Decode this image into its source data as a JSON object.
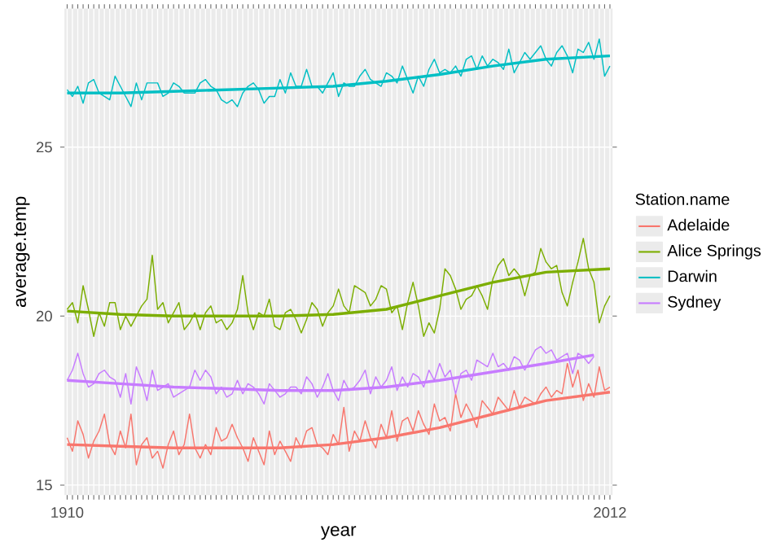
{
  "chart_data": {
    "type": "line",
    "xlabel": "year",
    "ylabel": "average.temp",
    "legend_title": "Station.name",
    "legend": "right",
    "grid": true,
    "x": [
      1910,
      1911,
      1912,
      1913,
      1914,
      1915,
      1916,
      1917,
      1918,
      1919,
      1920,
      1921,
      1922,
      1923,
      1924,
      1925,
      1926,
      1927,
      1928,
      1929,
      1930,
      1931,
      1932,
      1933,
      1934,
      1935,
      1936,
      1937,
      1938,
      1939,
      1940,
      1941,
      1942,
      1943,
      1944,
      1945,
      1946,
      1947,
      1948,
      1949,
      1950,
      1951,
      1952,
      1953,
      1954,
      1955,
      1956,
      1957,
      1958,
      1959,
      1960,
      1961,
      1962,
      1963,
      1964,
      1965,
      1966,
      1967,
      1968,
      1969,
      1970,
      1971,
      1972,
      1973,
      1974,
      1975,
      1976,
      1977,
      1978,
      1979,
      1980,
      1981,
      1982,
      1983,
      1984,
      1985,
      1986,
      1987,
      1988,
      1989,
      1990,
      1991,
      1992,
      1993,
      1994,
      1995,
      1996,
      1997,
      1998,
      1999,
      2000,
      2001,
      2002,
      2003,
      2004,
      2005,
      2006,
      2007,
      2008,
      2009,
      2010,
      2011,
      2012
    ],
    "xlim": [
      1909.5,
      2012.5
    ],
    "xticks": [
      1910,
      {
        "value": 1911,
        "label": null
      },
      {
        "value": 1912,
        "label": null
      },
      {
        "value": 1913,
        "label": null
      },
      {
        "value": 1914,
        "label": null
      },
      {
        "value": 1915,
        "label": null
      },
      {
        "value": 1916,
        "label": null
      },
      {
        "value": 1917,
        "label": null
      },
      {
        "value": 1918,
        "label": null
      },
      {
        "value": 1919,
        "label": null
      },
      {
        "value": 1920,
        "label": null
      },
      {
        "value": 1921,
        "label": null
      },
      {
        "value": 1922,
        "label": null
      },
      {
        "value": 1923,
        "label": null
      },
      {
        "value": 1924,
        "label": null
      },
      {
        "value": 1925,
        "label": null
      },
      {
        "value": 1926,
        "label": null
      },
      {
        "value": 1927,
        "label": null
      },
      {
        "value": 1928,
        "label": null
      },
      {
        "value": 1929,
        "label": null
      },
      {
        "value": 1930,
        "label": null
      },
      {
        "value": 1931,
        "label": null
      },
      {
        "value": 1932,
        "label": null
      },
      {
        "value": 1933,
        "label": null
      },
      {
        "value": 1934,
        "label": null
      },
      {
        "value": 1935,
        "label": null
      },
      {
        "value": 1936,
        "label": null
      },
      {
        "value": 1937,
        "label": null
      },
      {
        "value": 1938,
        "label": null
      },
      {
        "value": 1939,
        "label": null
      },
      {
        "value": 1940,
        "label": null
      },
      {
        "value": 1941,
        "label": null
      },
      {
        "value": 1942,
        "label": null
      },
      {
        "value": 1943,
        "label": null
      },
      {
        "value": 1944,
        "label": null
      },
      {
        "value": 1945,
        "label": null
      },
      {
        "value": 1946,
        "label": null
      },
      {
        "value": 1947,
        "label": null
      },
      {
        "value": 1948,
        "label": null
      },
      {
        "value": 1949,
        "label": null
      },
      {
        "value": 1950,
        "label": null
      },
      {
        "value": 1951,
        "label": null
      },
      {
        "value": 1952,
        "label": null
      },
      {
        "value": 1953,
        "label": null
      },
      {
        "value": 1954,
        "label": null
      },
      {
        "value": 1955,
        "label": null
      },
      {
        "value": 1956,
        "label": null
      },
      {
        "value": 1957,
        "label": null
      },
      {
        "value": 1958,
        "label": null
      },
      {
        "value": 1959,
        "label": null
      },
      {
        "value": 1960,
        "label": null
      },
      {
        "value": 1961,
        "label": null
      },
      {
        "value": 1962,
        "label": null
      },
      {
        "value": 1963,
        "label": null
      },
      {
        "value": 1964,
        "label": null
      },
      {
        "value": 1965,
        "label": null
      },
      {
        "value": 1966,
        "label": null
      },
      {
        "value": 1967,
        "label": null
      },
      {
        "value": 1968,
        "label": null
      },
      {
        "value": 1969,
        "label": null
      },
      {
        "value": 1970,
        "label": null
      },
      {
        "value": 1971,
        "label": null
      },
      {
        "value": 1972,
        "label": null
      },
      {
        "value": 1973,
        "label": null
      },
      {
        "value": 1974,
        "label": null
      },
      {
        "value": 1975,
        "label": null
      },
      {
        "value": 1976,
        "label": null
      },
      {
        "value": 1977,
        "label": null
      },
      {
        "value": 1978,
        "label": null
      },
      {
        "value": 1979,
        "label": null
      },
      {
        "value": 1980,
        "label": null
      },
      {
        "value": 1981,
        "label": null
      },
      {
        "value": 1982,
        "label": null
      },
      {
        "value": 1983,
        "label": null
      },
      {
        "value": 1984,
        "label": null
      },
      {
        "value": 1985,
        "label": null
      },
      {
        "value": 1986,
        "label": null
      },
      {
        "value": 1987,
        "label": null
      },
      {
        "value": 1988,
        "label": null
      },
      {
        "value": 1989,
        "label": null
      },
      {
        "value": 1990,
        "label": null
      },
      {
        "value": 1991,
        "label": null
      },
      {
        "value": 1992,
        "label": null
      },
      {
        "value": 1993,
        "label": null
      },
      {
        "value": 1994,
        "label": null
      },
      {
        "value": 1995,
        "label": null
      },
      {
        "value": 1996,
        "label": null
      },
      {
        "value": 1997,
        "label": null
      },
      {
        "value": 1998,
        "label": null
      },
      {
        "value": 1999,
        "label": null
      },
      {
        "value": 2000,
        "label": null
      },
      {
        "value": 2001,
        "label": null
      },
      {
        "value": 2002,
        "label": null
      },
      {
        "value": 2003,
        "label": null
      },
      {
        "value": 2004,
        "label": null
      },
      {
        "value": 2005,
        "label": null
      },
      {
        "value": 2006,
        "label": null
      },
      {
        "value": 2007,
        "label": null
      },
      {
        "value": 2008,
        "label": null
      },
      {
        "value": 2009,
        "label": null
      },
      {
        "value": 2010,
        "label": null
      },
      {
        "value": 2011,
        "label": null
      },
      2012
    ],
    "ylim": [
      14.7,
      29.1
    ],
    "yticks": [
      15,
      20,
      25
    ],
    "series": [
      {
        "name": "Adelaide",
        "color": "#f8766d",
        "values": [
          16.4,
          16.0,
          16.9,
          16.5,
          15.8,
          16.3,
          16.6,
          17.1,
          16.2,
          15.9,
          16.6,
          16.1,
          17.1,
          15.6,
          16.2,
          16.4,
          15.8,
          16.0,
          15.5,
          16.2,
          16.6,
          15.9,
          16.2,
          17.1,
          16.1,
          15.8,
          16.2,
          15.9,
          16.7,
          16.3,
          16.4,
          16.8,
          16.4,
          16.1,
          15.7,
          16.4,
          16.0,
          15.6,
          16.6,
          15.9,
          16.3,
          16.0,
          15.7,
          16.4,
          16.1,
          16.6,
          16.7,
          16.2,
          16.1,
          15.9,
          16.5,
          16.2,
          17.3,
          16.0,
          16.6,
          16.3,
          16.9,
          16.4,
          16.1,
          16.8,
          16.4,
          17.2,
          16.3,
          16.9,
          17.0,
          16.6,
          17.2,
          16.8,
          16.5,
          17.4,
          16.9,
          17.0,
          16.6,
          17.7,
          17.0,
          17.4,
          17.1,
          16.7,
          17.5,
          17.3,
          17.1,
          17.6,
          17.4,
          17.2,
          17.8,
          17.3,
          17.6,
          17.5,
          17.4,
          17.7,
          17.9,
          17.6,
          17.8,
          17.7,
          18.6,
          17.9,
          18.4,
          17.5,
          18.0,
          17.6,
          18.5,
          17.8,
          17.9
        ]
      },
      {
        "name": "Alice Springs",
        "color": "#7cae00",
        "values": [
          20.2,
          20.4,
          19.8,
          20.9,
          20.2,
          19.4,
          20.1,
          19.7,
          20.4,
          20.4,
          19.6,
          20.0,
          19.7,
          20.0,
          20.3,
          20.5,
          21.8,
          20.2,
          20.4,
          19.8,
          20.1,
          20.4,
          19.6,
          19.8,
          20.1,
          19.6,
          20.1,
          20.3,
          19.8,
          19.9,
          19.6,
          19.8,
          20.2,
          21.2,
          20.1,
          19.6,
          20.1,
          20.0,
          20.5,
          19.7,
          19.6,
          20.1,
          20.2,
          19.9,
          19.5,
          19.9,
          20.4,
          20.2,
          19.7,
          20.1,
          20.3,
          20.8,
          20.3,
          20.1,
          20.9,
          20.8,
          20.7,
          20.3,
          20.5,
          20.9,
          20.8,
          20.1,
          20.3,
          19.6,
          20.4,
          21.0,
          20.3,
          19.4,
          19.8,
          19.5,
          20.2,
          21.4,
          21.2,
          20.8,
          20.2,
          20.5,
          20.6,
          20.9,
          20.6,
          20.2,
          21.1,
          21.5,
          21.7,
          21.2,
          21.4,
          21.2,
          20.6,
          21.2,
          21.3,
          22.0,
          21.6,
          21.4,
          21.5,
          20.7,
          20.3,
          21.0,
          21.6,
          22.3,
          21.4,
          21.0,
          19.8,
          20.3,
          20.6
        ]
      },
      {
        "name": "Darwin",
        "color": "#00bfc4",
        "values": [
          26.7,
          26.5,
          26.8,
          26.3,
          26.9,
          27.0,
          26.6,
          26.5,
          26.4,
          27.1,
          26.8,
          26.5,
          26.2,
          26.9,
          26.4,
          26.9,
          26.9,
          26.9,
          26.5,
          26.6,
          26.9,
          26.8,
          26.6,
          26.6,
          26.6,
          26.9,
          27.0,
          26.8,
          26.7,
          26.4,
          26.3,
          26.4,
          26.2,
          26.6,
          26.8,
          26.9,
          26.7,
          26.3,
          26.5,
          26.5,
          27.0,
          26.6,
          27.2,
          26.8,
          26.8,
          27.3,
          26.8,
          26.8,
          26.6,
          26.9,
          27.2,
          26.5,
          26.9,
          26.8,
          26.8,
          27.1,
          27.3,
          27.0,
          26.9,
          26.8,
          27.2,
          27.1,
          26.9,
          27.4,
          27.0,
          26.6,
          27.1,
          26.8,
          27.3,
          27.6,
          27.2,
          27.3,
          27.2,
          27.4,
          27.1,
          27.6,
          27.7,
          27.3,
          27.7,
          27.4,
          27.6,
          27.5,
          27.3,
          27.9,
          27.2,
          27.5,
          27.8,
          27.6,
          27.8,
          28.0,
          27.6,
          27.4,
          27.8,
          28.0,
          27.7,
          27.2,
          27.9,
          27.8,
          28.1,
          27.6,
          28.2,
          27.1,
          27.4
        ]
      },
      {
        "name": "Sydney",
        "color": "#c77cff",
        "values": [
          18.1,
          18.4,
          18.9,
          18.3,
          17.9,
          18.0,
          18.3,
          18.4,
          18.2,
          18.1,
          17.6,
          18.3,
          17.4,
          18.5,
          18.1,
          17.5,
          18.4,
          17.8,
          17.9,
          18.0,
          17.6,
          17.7,
          17.8,
          17.9,
          18.4,
          18.1,
          18.4,
          18.2,
          17.7,
          17.9,
          17.6,
          17.7,
          18.1,
          17.7,
          18.0,
          17.9,
          17.7,
          17.4,
          18.0,
          17.8,
          17.6,
          17.7,
          17.9,
          17.9,
          17.7,
          18.2,
          18.0,
          17.6,
          17.9,
          18.3,
          17.8,
          17.5,
          18.1,
          17.8,
          17.9,
          18.1,
          18.4,
          17.7,
          18.2,
          17.9,
          18.1,
          18.5,
          17.8,
          18.2,
          17.9,
          18.3,
          18.2,
          17.9,
          18.4,
          18.1,
          18.6,
          18.2,
          18.4,
          17.7,
          18.3,
          18.4,
          18.1,
          18.7,
          18.6,
          18.5,
          18.9,
          18.5,
          18.6,
          18.4,
          18.8,
          18.7,
          18.4,
          18.7,
          19.0,
          19.1,
          18.9,
          19.0,
          18.7,
          18.8,
          18.9,
          18.3,
          18.9,
          18.8,
          18.6,
          18.8,
          null,
          null,
          null
        ]
      },
      {
        "color": "#f8766d",
        "x": [
          1910,
          1920,
          1930,
          1940,
          1950,
          1960,
          1970,
          1980,
          1990,
          2000,
          2012
        ],
        "values": [
          16.2,
          16.15,
          16.1,
          16.1,
          16.1,
          16.2,
          16.4,
          16.7,
          17.1,
          17.5,
          17.75
        ]
      },
      {
        "color": "#7cae00",
        "x": [
          1910,
          1920,
          1930,
          1940,
          1950,
          1960,
          1970,
          1980,
          1990,
          2000,
          2012
        ],
        "values": [
          20.15,
          20.05,
          20.0,
          20.0,
          20.0,
          20.05,
          20.2,
          20.6,
          21.0,
          21.3,
          21.4
        ]
      },
      {
        "color": "#00bfc4",
        "x": [
          1910,
          1920,
          1930,
          1940,
          1950,
          1960,
          1970,
          1980,
          1990,
          2000,
          2012
        ],
        "values": [
          26.6,
          26.6,
          26.65,
          26.7,
          26.75,
          26.8,
          26.95,
          27.15,
          27.4,
          27.6,
          27.7
        ]
      },
      {
        "color": "#c77cff",
        "x": [
          1910,
          1920,
          1930,
          1940,
          1950,
          1960,
          1970,
          1980,
          1990,
          2000,
          2009
        ],
        "values": [
          18.1,
          18.0,
          17.9,
          17.85,
          17.8,
          17.8,
          17.9,
          18.1,
          18.35,
          18.6,
          18.85
        ]
      }
    ]
  }
}
